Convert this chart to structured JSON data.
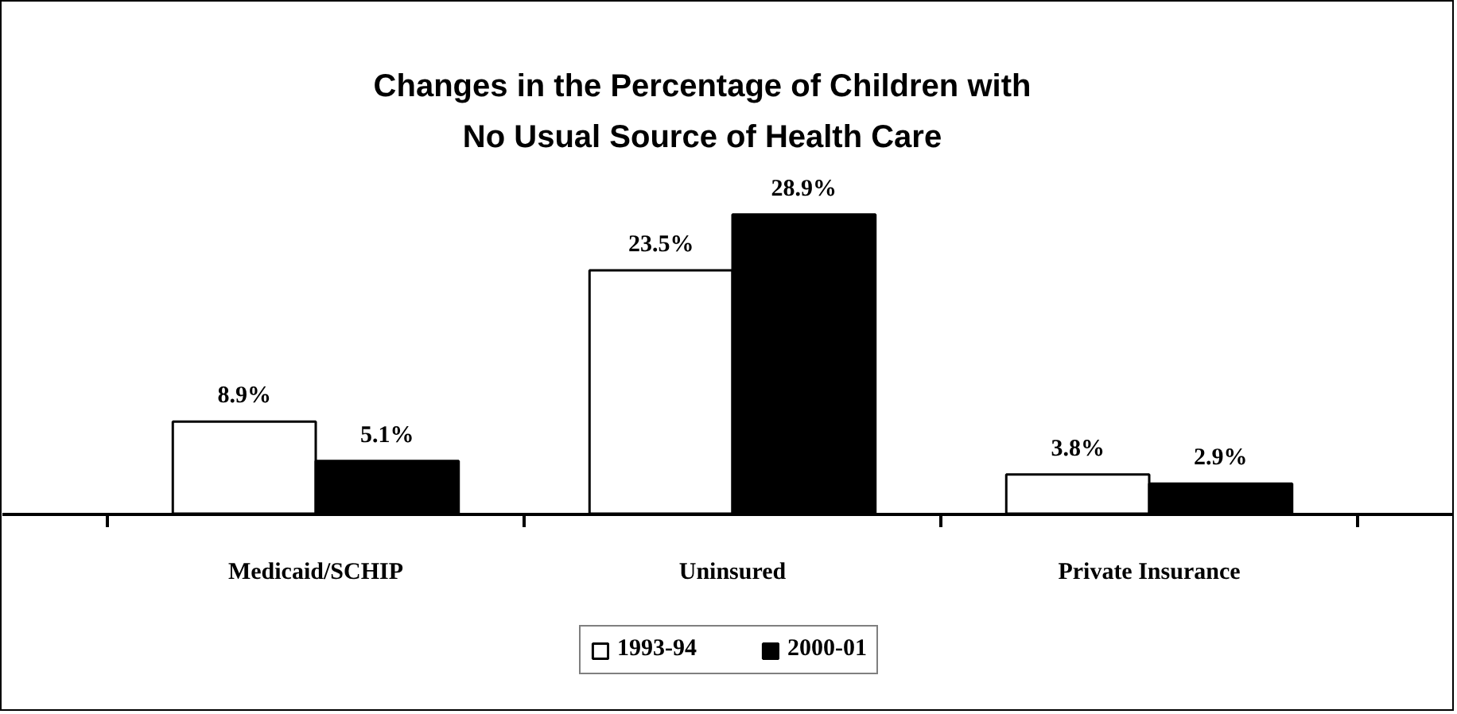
{
  "chart_data": {
    "type": "bar",
    "title": "Changes in the Percentage of Children with No Usual Source of Health Care",
    "categories": [
      "Medicaid/SCHIP",
      "Uninsured",
      "Private Insurance"
    ],
    "series": [
      {
        "name": "1993-94",
        "color": "#ffffff",
        "values": [
          8.9,
          23.5,
          3.8
        ],
        "value_labels": [
          "8.9%",
          "23.5%",
          "3.8%"
        ]
      },
      {
        "name": "2000-01",
        "color": "#000000",
        "values": [
          5.1,
          28.9,
          2.9
        ],
        "value_labels": [
          "5.1%",
          "28.9%",
          "2.9%"
        ]
      }
    ],
    "legend": "bottom"
  }
}
